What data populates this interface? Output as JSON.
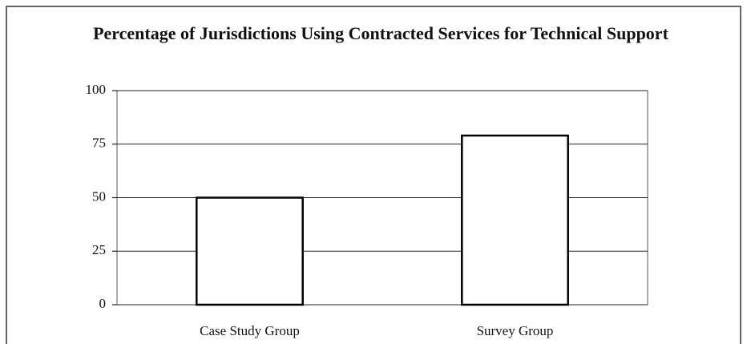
{
  "chart_data": {
    "type": "bar",
    "title": "Percentage of Jurisdictions Using Contracted Services for Technical Support",
    "categories": [
      "Case Study Group",
      "Survey Group"
    ],
    "values": [
      50,
      79
    ],
    "color": "#ffffff",
    "ylim": [
      0,
      100
    ],
    "yticks": [
      0,
      25,
      50,
      75,
      100
    ],
    "grid": true
  }
}
